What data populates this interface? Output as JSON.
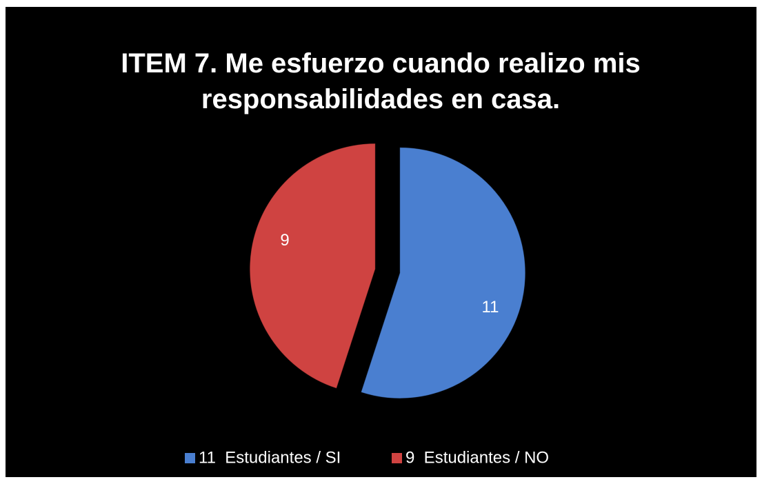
{
  "chart_data": {
    "type": "pie",
    "title": "ITEM 7. Me esfuerzo cuando realizo mis responsabilidades en casa.",
    "categories": [
      "11  Estudiantes / SI",
      "9  Estudiantes / NO"
    ],
    "values": [
      11,
      9
    ],
    "colors": [
      "#4a7fd0",
      "#cf4341"
    ],
    "legend": "bottom"
  }
}
